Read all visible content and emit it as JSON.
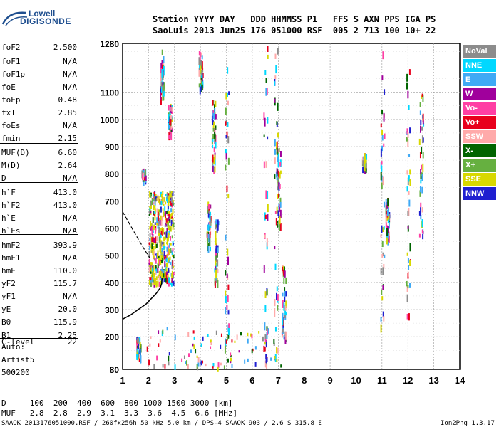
{
  "logo": {
    "line1": "Lowell",
    "line2": "DIGISONDE"
  },
  "header": {
    "line1": "Station YYYY DAY   DDD HHMMSS P1   FFS S AXN PPS IGA PS",
    "line2": "SaoLuis 2013 Jun25 176 051000 RSF  005 2 713 100 10+ 22"
  },
  "params": [
    {
      "label": "foF2",
      "value": "2.500"
    },
    {
      "label": "foF1",
      "value": "N/A"
    },
    {
      "label": "foF1p",
      "value": "N/A"
    },
    {
      "label": "foE",
      "value": "N/A"
    },
    {
      "label": "foEp",
      "value": "0.48"
    },
    {
      "label": "fxI",
      "value": "2.85"
    },
    {
      "label": "foEs",
      "value": "N/A"
    },
    {
      "label": "fmin",
      "value": "2.15"
    },
    {
      "label": "MUF(D)",
      "value": "6.60"
    },
    {
      "label": "M(D)",
      "value": "2.64"
    },
    {
      "label": "D",
      "value": "N/A"
    },
    {
      "label": "h`F",
      "value": "413.0"
    },
    {
      "label": "h`F2",
      "value": "413.0"
    },
    {
      "label": "h`E",
      "value": "N/A"
    },
    {
      "label": "h`Es",
      "value": "N/A"
    },
    {
      "label": "hmF2",
      "value": "393.9"
    },
    {
      "label": "hmF1",
      "value": "N/A"
    },
    {
      "label": "hmE",
      "value": "110.0"
    },
    {
      "label": "yF2",
      "value": "115.7"
    },
    {
      "label": "yF1",
      "value": "N/A"
    },
    {
      "label": "yE",
      "value": "20.0"
    },
    {
      "label": "B0",
      "value": "115.9"
    },
    {
      "label": "B1",
      "value": "2.25"
    },
    {
      "label": "C-level",
      "value": "22"
    }
  ],
  "auto_block": {
    "line1": "Auto:",
    "line2": "Artist5",
    "line3": "500200"
  },
  "legend": [
    {
      "label": "NoVal",
      "color": "#8c8c8c"
    },
    {
      "label": "NNE",
      "color": "#00d8ff"
    },
    {
      "label": "E",
      "color": "#3fa9f5"
    },
    {
      "label": "W",
      "color": "#a0009c"
    },
    {
      "label": "Vo-",
      "color": "#ff3fa4"
    },
    {
      "label": "Vo+",
      "color": "#e8001c"
    },
    {
      "label": "SSW",
      "color": "#ffaaaa"
    },
    {
      "label": "X-",
      "color": "#006400"
    },
    {
      "label": "X+",
      "color": "#66b040"
    },
    {
      "label": "SSE",
      "color": "#d8d800"
    },
    {
      "label": "NNW",
      "color": "#1f1fd0"
    }
  ],
  "footer": {
    "d_line": "D     100  200  400  600  800 1000 1500 3000 [km]",
    "muf_line": "MUF   2.8  2.8  2.9  3.1  3.3  3.6  4.5  6.6 [MHz]",
    "file_line": "SAAOK_2013176051000.RSF / 260fx256h 50 kHz 5.0 km / DPS-4 SAAOK 903 / 2.6 S 315.8 E",
    "version": "Ion2Png 1.3.17"
  },
  "chart_data": {
    "type": "scatter",
    "xlim": [
      1,
      14
    ],
    "ylim": [
      80,
      1280
    ],
    "x_ticks": [
      "1",
      "2",
      "3",
      "4",
      "5",
      "6",
      "7",
      "8",
      "9",
      "10",
      "11",
      "12",
      "13",
      "14"
    ],
    "y_ticks": [
      "80",
      "200",
      "300",
      "400",
      "500",
      "600",
      "700",
      "800",
      "900",
      "1000",
      "1100",
      "1280"
    ],
    "grid": true,
    "legend_position": "right",
    "profile_curve": {
      "x": [
        1.0,
        1.3,
        1.6,
        1.9,
        2.1,
        2.3,
        2.45,
        2.5,
        2.52
      ],
      "y": [
        265,
        280,
        300,
        320,
        340,
        360,
        380,
        395,
        415
      ]
    },
    "trace_curve": {
      "x": [
        1.0,
        1.3,
        1.6,
        1.85,
        2.05
      ],
      "y": [
        660,
        610,
        560,
        520,
        490
      ]
    }
  }
}
